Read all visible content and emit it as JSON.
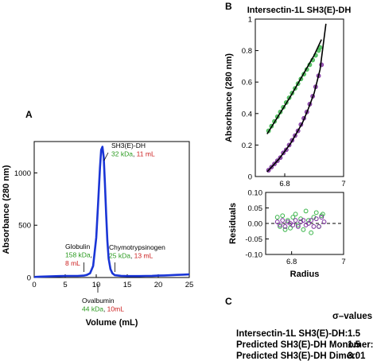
{
  "panel_labels": {
    "a": "A",
    "b": "B",
    "c": "C"
  },
  "chart_data": [
    {
      "type": "line",
      "panel": "A",
      "title": "",
      "xlabel": "Volume (mL)",
      "ylabel": "Absorbance (280 nm)",
      "xlim": [
        0,
        25
      ],
      "ylim": [
        0,
        1300
      ],
      "xticks": [
        "0",
        "5",
        "10",
        "15",
        "20",
        "25"
      ],
      "xtick_values": [
        0,
        5,
        10,
        15,
        20,
        25
      ],
      "yticks": [
        "0",
        "500",
        "1000"
      ],
      "ytick_values": [
        0,
        500,
        1000
      ],
      "series": [
        {
          "color": "#1a35d6",
          "x": [
            0,
            1,
            2,
            3,
            4,
            5,
            6,
            7,
            8,
            8.5,
            9,
            9.5,
            10,
            10.3,
            10.6,
            10.8,
            11.0,
            11.2,
            11.4,
            11.6,
            11.8,
            12.0,
            12.3,
            12.6,
            13,
            14,
            15,
            16,
            17,
            18,
            19,
            20,
            21,
            22,
            23,
            24,
            25
          ],
          "y": [
            5,
            8,
            10,
            12,
            14,
            15,
            15,
            15,
            18,
            25,
            40,
            110,
            380,
            700,
            1050,
            1220,
            1250,
            1150,
            900,
            600,
            350,
            180,
            80,
            40,
            22,
            16,
            14,
            14,
            14,
            15,
            16,
            18,
            20,
            22,
            25,
            27,
            30
          ]
        }
      ],
      "annotations": [
        {
          "lines": [
            {
              "parts": [
                {
                  "text": "SH3(E)-DH",
                  "color": "#000000"
                }
              ]
            },
            {
              "parts": [
                {
                  "text": "32 kDa",
                  "color": "#2a9a1f"
                },
                {
                  "text": ", ",
                  "color": "#000000"
                },
                {
                  "text": "11 mL",
                  "color": "#cc1f1f"
                }
              ]
            }
          ],
          "arrow_x": 11
        },
        {
          "lines": [
            {
              "parts": [
                {
                  "text": "Globulin",
                  "color": "#000000"
                }
              ]
            },
            {
              "parts": [
                {
                  "text": "158 kDa",
                  "color": "#2a9a1f"
                },
                {
                  "text": ",",
                  "color": "#000000"
                }
              ]
            },
            {
              "parts": [
                {
                  "text": "8 mL",
                  "color": "#cc1f1f"
                }
              ]
            }
          ],
          "arrow_x": 8
        },
        {
          "lines": [
            {
              "parts": [
                {
                  "text": "Chymotrypsinogen",
                  "color": "#000000"
                }
              ]
            },
            {
              "parts": [
                {
                  "text": "25 kDa",
                  "color": "#2a9a1f"
                },
                {
                  "text": ", ",
                  "color": "#000000"
                },
                {
                  "text": "13 mL",
                  "color": "#cc1f1f"
                }
              ]
            }
          ],
          "arrow_x": 13
        },
        {
          "lines": [
            {
              "parts": [
                {
                  "text": "Ovalbumin",
                  "color": "#000000"
                }
              ]
            },
            {
              "parts": [
                {
                  "text": "44 kDa",
                  "color": "#2a9a1f"
                },
                {
                  "text": ", ",
                  "color": "#000000"
                },
                {
                  "text": "10mL",
                  "color": "#cc1f1f"
                }
              ]
            }
          ],
          "arrow_x": 10
        }
      ]
    },
    {
      "type": "scatter",
      "panel": "B",
      "title": "Intersectin-1L SH3(E)-DH",
      "xlabel": "",
      "ylabel": "Absorbance (280 nm)",
      "xlim": [
        6.7,
        7.0
      ],
      "ylim": [
        0,
        1.0
      ],
      "xticks": [
        "6.8",
        "7"
      ],
      "xtick_values": [
        6.8,
        7.0
      ],
      "yticks": [
        "0",
        "0.2",
        "0.4",
        "0.6",
        "0.8",
        "1"
      ],
      "ytick_values": [
        0,
        0.2,
        0.4,
        0.6,
        0.8,
        1.0
      ],
      "series": [
        {
          "color": "#3ab54a",
          "x": [
            6.745,
            6.755,
            6.765,
            6.775,
            6.785,
            6.795,
            6.805,
            6.815,
            6.825,
            6.835,
            6.845,
            6.855,
            6.865,
            6.875,
            6.885,
            6.895,
            6.905,
            6.915,
            6.92
          ],
          "y": [
            0.29,
            0.32,
            0.35,
            0.38,
            0.41,
            0.44,
            0.47,
            0.5,
            0.53,
            0.56,
            0.59,
            0.62,
            0.65,
            0.68,
            0.71,
            0.74,
            0.77,
            0.8,
            0.82
          ]
        },
        {
          "color": "#7a2c9c",
          "x": [
            6.745,
            6.755,
            6.765,
            6.775,
            6.785,
            6.795,
            6.805,
            6.815,
            6.825,
            6.835,
            6.845,
            6.855,
            6.865,
            6.875,
            6.885,
            6.895,
            6.905,
            6.915,
            6.925
          ],
          "y": [
            0.04,
            0.06,
            0.08,
            0.1,
            0.12,
            0.15,
            0.17,
            0.2,
            0.23,
            0.26,
            0.29,
            0.33,
            0.37,
            0.41,
            0.46,
            0.51,
            0.57,
            0.64,
            0.71
          ]
        }
      ],
      "fits": [
        {
          "color": "#000000",
          "x": [
            6.74,
            6.78,
            6.82,
            6.86,
            6.9,
            6.925
          ],
          "y": [
            0.27,
            0.39,
            0.51,
            0.64,
            0.77,
            0.87
          ]
        },
        {
          "color": "#000000",
          "x": [
            6.74,
            6.78,
            6.82,
            6.86,
            6.88,
            6.9,
            6.92,
            6.94
          ],
          "y": [
            0.03,
            0.11,
            0.21,
            0.34,
            0.43,
            0.53,
            0.68,
            0.97
          ]
        }
      ]
    },
    {
      "type": "scatter",
      "panel": "B",
      "title": "",
      "xlabel": "Radius",
      "ylabel": "Residuals",
      "xlim": [
        6.7,
        7.0
      ],
      "ylim": [
        -0.1,
        0.1
      ],
      "xticks": [
        "6.8",
        "7"
      ],
      "xtick_values": [
        6.8,
        7.0
      ],
      "yticks": [
        "0.10",
        "0.05",
        "0.00",
        "-0.05",
        "-0.10"
      ],
      "ytick_values": [
        0.1,
        0.05,
        0.0,
        -0.05,
        -0.1
      ],
      "zero_line": true,
      "series": [
        {
          "color": "#3ab54a",
          "x": [
            6.745,
            6.755,
            6.765,
            6.775,
            6.785,
            6.795,
            6.805,
            6.815,
            6.825,
            6.835,
            6.845,
            6.855,
            6.865,
            6.875,
            6.885,
            6.895,
            6.905,
            6.915,
            6.92
          ],
          "y": [
            0.02,
            -0.01,
            0.025,
            -0.02,
            0.01,
            -0.015,
            0.02,
            0.03,
            -0.005,
            0.015,
            -0.02,
            0.04,
            0.01,
            -0.03,
            0.02,
            0.035,
            -0.01,
            0.025,
            0.03
          ]
        },
        {
          "color": "#7a2c9c",
          "x": [
            6.745,
            6.755,
            6.765,
            6.775,
            6.785,
            6.795,
            6.805,
            6.815,
            6.825,
            6.835,
            6.845,
            6.855,
            6.865,
            6.875,
            6.885,
            6.895,
            6.905,
            6.915,
            6.925
          ],
          "y": [
            0.005,
            -0.005,
            0.01,
            -0.01,
            0.005,
            0.0,
            -0.005,
            0.01,
            -0.01,
            0.005,
            0.01,
            -0.005,
            0.0,
            0.01,
            -0.01,
            0.015,
            -0.01,
            0.02,
            0.005
          ]
        }
      ]
    }
  ],
  "sigma_table": {
    "header": "σ–values",
    "rows": [
      {
        "label": "Intersectin-1L SH3(E)-DH:",
        "value": "1.5"
      },
      {
        "label": "Predicted SH3(E)-DH Monomer:",
        "value": "1.5"
      },
      {
        "label": "Predicted SH3(E)-DH Dimer:",
        "value": "3.01"
      }
    ]
  }
}
